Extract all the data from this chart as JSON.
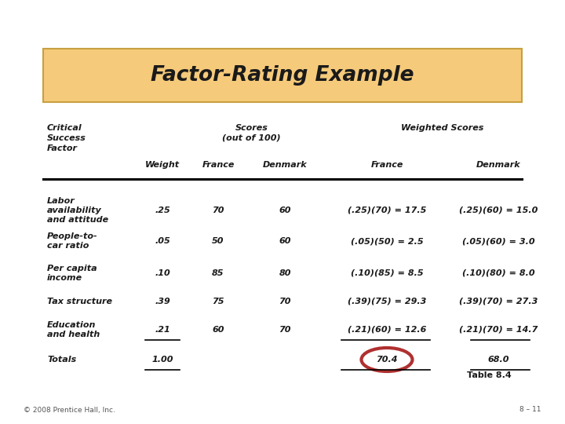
{
  "title": "Factor-Rating Example",
  "title_bg": "#F5CA7A",
  "title_border": "#C8A040",
  "bg_color": "#FFFFFF",
  "rows": [
    [
      "Labor\navailability\nand attitude",
      ".25",
      "70",
      "60",
      "(.25)(70) = 17.5",
      "(.25)(60) = 15.0"
    ],
    [
      "People-to-\ncar ratio",
      ".05",
      "50",
      "60",
      "(.05)(50) = 2.5",
      "(.05)(60) = 3.0"
    ],
    [
      "Per capita\nincome",
      ".10",
      "85",
      "80",
      "(.10)(85) = 8.5",
      "(.10)(80) = 8.0"
    ],
    [
      "Tax structure",
      ".39",
      "75",
      "70",
      "(.39)(75) = 29.3",
      "(.39)(70) = 27.3"
    ],
    [
      "Education\nand health",
      ".21",
      "60",
      "70",
      "(.21)(60) = 12.6",
      "(.21)(70) = 14.7"
    ],
    [
      "Totals",
      "1.00",
      "",
      "",
      "70.4",
      "68.0"
    ]
  ],
  "table_note": "Table 8.4",
  "footer": "© 2008 Prentice Hall, Inc.",
  "slide_num": "8 – 11",
  "text_color": "#1a1a1a",
  "circle_color": "#B03030"
}
